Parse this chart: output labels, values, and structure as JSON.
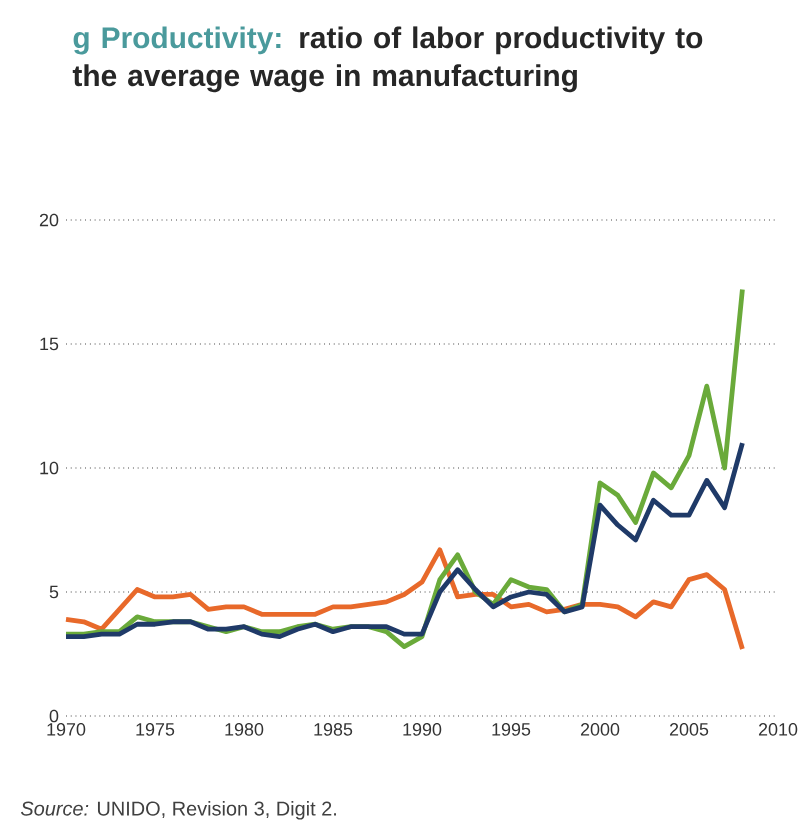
{
  "chart_data": {
    "type": "line",
    "title": "g Productivity:",
    "subtitle": "ratio of labor productivity to the average wage in manufacturing",
    "annotations": [
      "*Source:* UNIDO, Revision 3, Digit 2."
    ],
    "x": [
      1970,
      1971,
      1972,
      1973,
      1974,
      1975,
      1976,
      1977,
      1978,
      1979,
      1980,
      1981,
      1982,
      1983,
      1984,
      1985,
      1986,
      1987,
      1988,
      1989,
      1990,
      1991,
      1992,
      1993,
      1994,
      1995,
      1996,
      1997,
      1998,
      1999,
      2000,
      2001,
      2002,
      2003,
      2004,
      2005,
      2006,
      2007,
      2008
    ],
    "series": [
      {
        "color": "#e8692a",
        "values": [
          3.9,
          3.8,
          3.5,
          4.3,
          5.1,
          4.8,
          4.8,
          4.9,
          4.3,
          4.4,
          4.4,
          4.1,
          4.1,
          4.1,
          4.1,
          4.4,
          4.4,
          4.5,
          4.6,
          4.9,
          5.4,
          6.7,
          4.8,
          4.9,
          4.9,
          4.4,
          4.5,
          4.2,
          4.3,
          4.5,
          4.5,
          4.4,
          4.0,
          4.6,
          4.4,
          5.5,
          5.7,
          5.1,
          2.7
        ]
      },
      {
        "color": "#6aaa3a",
        "values": [
          3.3,
          3.3,
          3.4,
          3.4,
          4.0,
          3.8,
          3.8,
          3.8,
          3.6,
          3.4,
          3.6,
          3.4,
          3.4,
          3.6,
          3.7,
          3.5,
          3.6,
          3.6,
          3.4,
          2.8,
          3.2,
          5.5,
          6.5,
          5.0,
          4.5,
          5.5,
          5.2,
          5.1,
          4.2,
          4.5,
          9.4,
          8.9,
          7.8,
          9.8,
          9.2,
          10.5,
          13.3,
          10.0,
          17.2
        ]
      },
      {
        "color": "#1f3a68",
        "values": [
          3.2,
          3.2,
          3.3,
          3.3,
          3.7,
          3.7,
          3.8,
          3.8,
          3.5,
          3.5,
          3.6,
          3.3,
          3.2,
          3.5,
          3.7,
          3.4,
          3.6,
          3.6,
          3.6,
          3.3,
          3.3,
          5.0,
          5.9,
          5.1,
          4.4,
          4.8,
          5.0,
          4.9,
          4.2,
          4.4,
          8.5,
          7.7,
          7.1,
          8.7,
          8.1,
          8.1,
          9.5,
          8.4,
          11.0
        ]
      }
    ],
    "xlim": [
      1970,
      2010
    ],
    "ylim": [
      0,
      20
    ],
    "xticks": [
      1970,
      1975,
      1980,
      1985,
      1990,
      1995,
      2000,
      2005,
      2010
    ],
    "yticks": [
      0,
      5,
      10,
      15,
      20
    ],
    "grid": "y"
  }
}
